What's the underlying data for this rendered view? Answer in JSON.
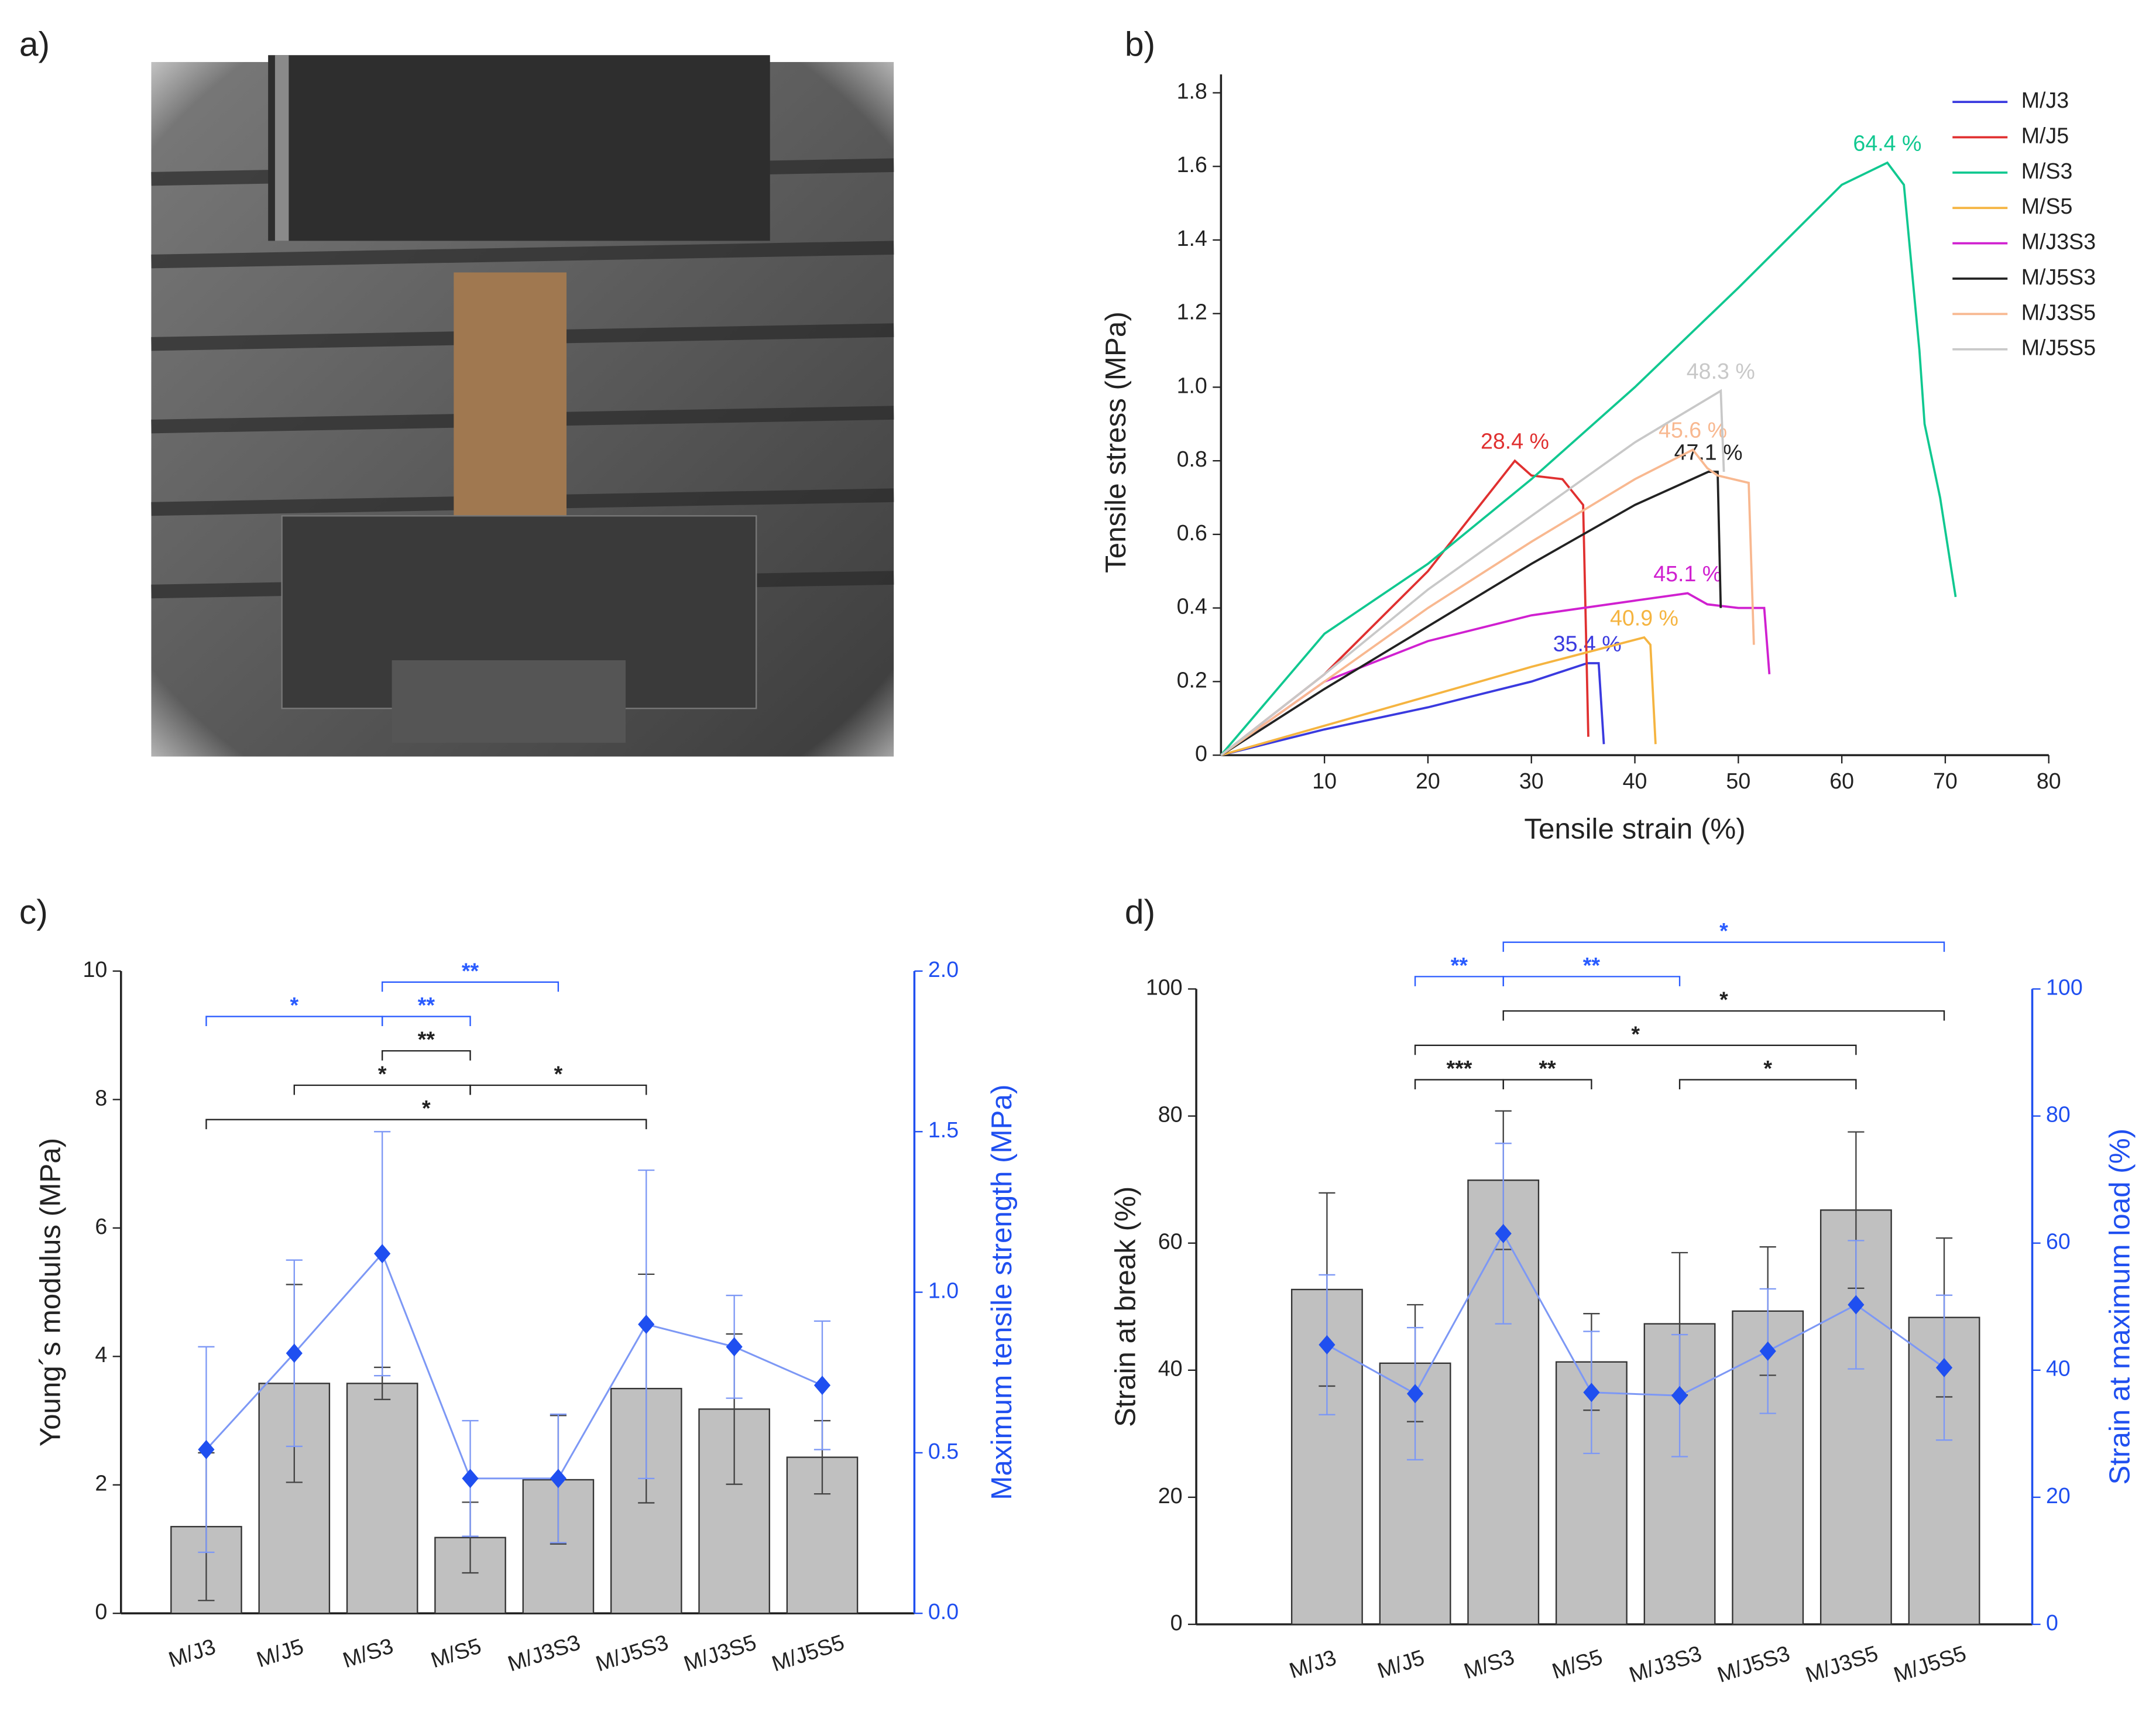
{
  "panel_labels": [
    "a)",
    "b)",
    "c)",
    "d)"
  ],
  "chart_data": [
    {
      "type": "line",
      "xlabel": "Tensile strain (%)",
      "ylabel": "Tensile stress (MPa)",
      "xlim": [
        0,
        80
      ],
      "xticks": [
        10,
        20,
        30,
        40,
        50,
        60,
        70,
        80
      ],
      "ylim": [
        0,
        1.85
      ],
      "yticks": [
        0,
        0.2,
        0.4,
        0.6,
        0.8,
        {
          "value": 1,
          "label": "1.0"
        },
        1.2,
        1.4,
        1.6,
        1.8
      ],
      "legend": "top-right",
      "series": [
        {
          "name": "M/J3",
          "color": "#3a3adf",
          "label": "35.4 %",
          "x": [
            0,
            10,
            20,
            30,
            35.4,
            36.5,
            37
          ],
          "values": [
            0,
            0.07,
            0.13,
            0.2,
            0.25,
            0.25,
            0.03
          ]
        },
        {
          "name": "M/J5",
          "color": "#e03030",
          "label": "28.4 %",
          "x": [
            0,
            10,
            20,
            28.4,
            30,
            33,
            35,
            35.5
          ],
          "values": [
            0,
            0.22,
            0.5,
            0.8,
            0.76,
            0.75,
            0.68,
            0.05
          ]
        },
        {
          "name": "M/S3",
          "color": "#10c890",
          "label": "64.4 %",
          "x": [
            0,
            10,
            20,
            30,
            40,
            50,
            60,
            64.4,
            66,
            67.5,
            68,
            69.5,
            71
          ],
          "values": [
            0,
            0.33,
            0.52,
            0.75,
            1.0,
            1.27,
            1.55,
            1.61,
            1.55,
            1.1,
            0.9,
            0.7,
            0.43
          ]
        },
        {
          "name": "M/S5",
          "color": "#f5b440",
          "label": "40.9 %",
          "x": [
            0,
            10,
            20,
            30,
            40.9,
            41.5,
            42
          ],
          "values": [
            0,
            0.08,
            0.16,
            0.24,
            0.32,
            0.3,
            0.03
          ]
        },
        {
          "name": "M/J3S3",
          "color": "#d020d0",
          "label": "45.1 %",
          "x": [
            0,
            10,
            20,
            30,
            40,
            45.1,
            47,
            50,
            52.5,
            53
          ],
          "values": [
            0,
            0.2,
            0.31,
            0.38,
            0.42,
            0.44,
            0.41,
            0.4,
            0.4,
            0.22
          ]
        },
        {
          "name": "M/J5S3",
          "color": "#222222",
          "label": "47.1 %",
          "x": [
            0,
            10,
            20,
            30,
            40,
            47.1,
            48,
            48.3
          ],
          "values": [
            0,
            0.18,
            0.35,
            0.52,
            0.68,
            0.77,
            0.77,
            0.4
          ]
        },
        {
          "name": "M/J3S5",
          "color": "#f8b890",
          "label": "45.6 %",
          "x": [
            0,
            10,
            20,
            30,
            40,
            45.6,
            47,
            48,
            51,
            51.5
          ],
          "values": [
            0,
            0.2,
            0.4,
            0.58,
            0.75,
            0.83,
            0.78,
            0.76,
            0.74,
            0.3
          ]
        },
        {
          "name": "M/J5S5",
          "color": "#c8c8c8",
          "label": "48.3 %",
          "x": [
            0,
            10,
            20,
            30,
            40,
            48.3,
            48.6
          ],
          "values": [
            0,
            0.22,
            0.45,
            0.65,
            0.85,
            0.99,
            0.77
          ]
        }
      ]
    },
    {
      "type": "bar",
      "ylabel": "Young´s modulus (MPa)",
      "y2label": "Maximum tensile strength (MPa)",
      "categories": [
        "M/J3",
        "M/J5",
        "M/S3",
        "M/S5",
        "M/J3S3",
        "M/J5S3",
        "M/J3S5",
        "M/J5S5"
      ],
      "ylim": [
        0,
        10
      ],
      "yticks": [
        0,
        2,
        4,
        6,
        8,
        10
      ],
      "y2lim": [
        0,
        2
      ],
      "y2ticks": [
        {
          "value": 0,
          "label": "0.0"
        },
        0.5,
        {
          "value": 1,
          "label": "1.0"
        },
        1.5,
        {
          "value": 2,
          "label": "2.0"
        }
      ],
      "series": [
        {
          "color": "#c0c0c0",
          "values": [
            1.35,
            3.58,
            3.58,
            1.18,
            2.08,
            3.5,
            3.18,
            2.43
          ],
          "errors": [
            1.15,
            1.54,
            0.25,
            0.55,
            1.0,
            1.78,
            1.17,
            0.57
          ]
        },
        {
          "type": "line",
          "axis": "y2",
          "color": "#1f4ff0",
          "values": [
            0.51,
            0.81,
            1.12,
            0.42,
            0.42,
            0.9,
            0.83,
            0.71
          ],
          "errors": [
            0.32,
            0.29,
            0.38,
            0.18,
            0.2,
            0.48,
            0.16,
            0.2
          ]
        }
      ],
      "brackets": [
        {
          "from": "M/J3",
          "to": "M/J5S3",
          "label": "*",
          "color": "#222222"
        },
        {
          "from": "M/J5",
          "to": "M/S5",
          "label": "*",
          "color": "#222222"
        },
        {
          "from": "M/S5",
          "to": "M/J5S3",
          "label": "*",
          "color": "#222222"
        },
        {
          "from": "M/S3",
          "to": "M/S5",
          "label": "**",
          "color": "#222222"
        },
        {
          "from": "M/J3",
          "to": "M/S3",
          "label": "*",
          "color": "#2a5cff"
        },
        {
          "from": "M/S3",
          "to": "M/S5",
          "label": "**",
          "color": "#2a5cff"
        },
        {
          "from": "M/S3",
          "to": "M/J3S3",
          "label": "**",
          "color": "#2a5cff"
        }
      ]
    },
    {
      "type": "bar",
      "ylabel": "Strain at break (%)",
      "y2label": "Strain at maximum load (%)",
      "categories": [
        "M/J3",
        "M/J5",
        "M/S3",
        "M/S5",
        "M/J3S3",
        "M/J5S3",
        "M/J3S5",
        "M/J5S5"
      ],
      "ylim": [
        0,
        100
      ],
      "yticks": [
        0,
        20,
        40,
        60,
        80,
        100
      ],
      "y2lim": [
        0,
        100
      ],
      "y2ticks": [
        0,
        20,
        40,
        60,
        80,
        100
      ],
      "series": [
        {
          "color": "#c0c0c0",
          "values": [
            52.7,
            41.1,
            69.9,
            41.3,
            47.3,
            49.3,
            65.2,
            48.3
          ],
          "errors": [
            15.2,
            9.2,
            10.9,
            7.6,
            11.2,
            10.1,
            12.3,
            12.5
          ]
        },
        {
          "type": "line",
          "axis": "y2",
          "color": "#1f4ff0",
          "values": [
            44,
            36.3,
            61.5,
            36.5,
            36,
            43,
            50.3,
            40.4
          ],
          "errors": [
            11,
            10.4,
            14.2,
            9.6,
            9.6,
            9.8,
            10.1,
            11.4
          ]
        }
      ],
      "brackets": [
        {
          "from": "M/J5",
          "to": "M/S3",
          "label": "***",
          "color": "#222222"
        },
        {
          "from": "M/S3",
          "to": "M/S5",
          "label": "**",
          "color": "#222222"
        },
        {
          "from": "M/J3S3",
          "to": "M/J3S5",
          "label": "*",
          "color": "#222222"
        },
        {
          "from": "M/J5",
          "to": "M/J3S5",
          "label": "*",
          "color": "#222222"
        },
        {
          "from": "M/S3",
          "to": "M/J5S5",
          "label": "*",
          "color": "#222222"
        },
        {
          "from": "M/J5",
          "to": "M/S3",
          "label": "**",
          "color": "#2a5cff"
        },
        {
          "from": "M/S3",
          "to": "M/J3S3",
          "label": "**",
          "color": "#2a5cff"
        },
        {
          "from": "M/S3",
          "to": "M/J5S5",
          "label": "*",
          "color": "#2a5cff"
        }
      ]
    }
  ]
}
